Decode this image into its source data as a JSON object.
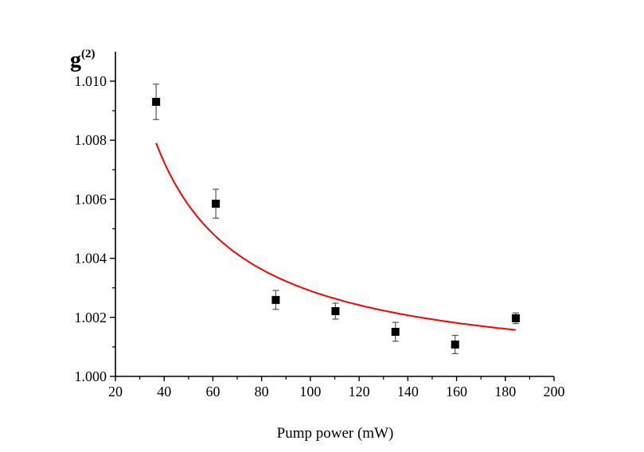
{
  "chart_data": {
    "type": "scatter",
    "title": "",
    "xlabel": "Pump power (mW)",
    "ylabel": "g",
    "ylabel_superscript": "(2)",
    "xlim": [
      20,
      200
    ],
    "ylim": [
      1.0,
      1.011
    ],
    "xticks": [
      20,
      40,
      60,
      80,
      100,
      120,
      140,
      160,
      180,
      200
    ],
    "xtick_labels": [
      "20",
      "40",
      "60",
      "80",
      "100",
      "120",
      "140",
      "160",
      "180",
      "200"
    ],
    "xminor": [
      30,
      50,
      70,
      90,
      110,
      130,
      150,
      170,
      190
    ],
    "yticks": [
      1.0,
      1.002,
      1.004,
      1.006,
      1.008,
      1.01
    ],
    "ytick_labels": [
      "1.000",
      "1.002",
      "1.004",
      "1.006",
      "1.008",
      "1.010"
    ],
    "yminor": [
      1.001,
      1.003,
      1.005,
      1.007,
      1.009
    ],
    "grid": false,
    "legend": "none",
    "series": [
      {
        "name": "measured",
        "kind": "scatter",
        "marker": "square",
        "color": "#000000",
        "x": [
          36.7,
          61.2,
          85.8,
          110.3,
          134.9,
          159.4,
          184.3
        ],
        "y": [
          1.0093,
          1.00585,
          1.00259,
          1.00221,
          1.00151,
          1.00108,
          1.00197
        ],
        "yerr": [
          0.0006,
          0.00049,
          0.00032,
          0.00027,
          0.00032,
          0.00031,
          0.00018
        ]
      },
      {
        "name": "fit",
        "kind": "line",
        "color": "#ff0000",
        "model": "1 + a / x",
        "a": 0.29,
        "x_range": [
          36.7,
          184.3
        ]
      }
    ]
  }
}
